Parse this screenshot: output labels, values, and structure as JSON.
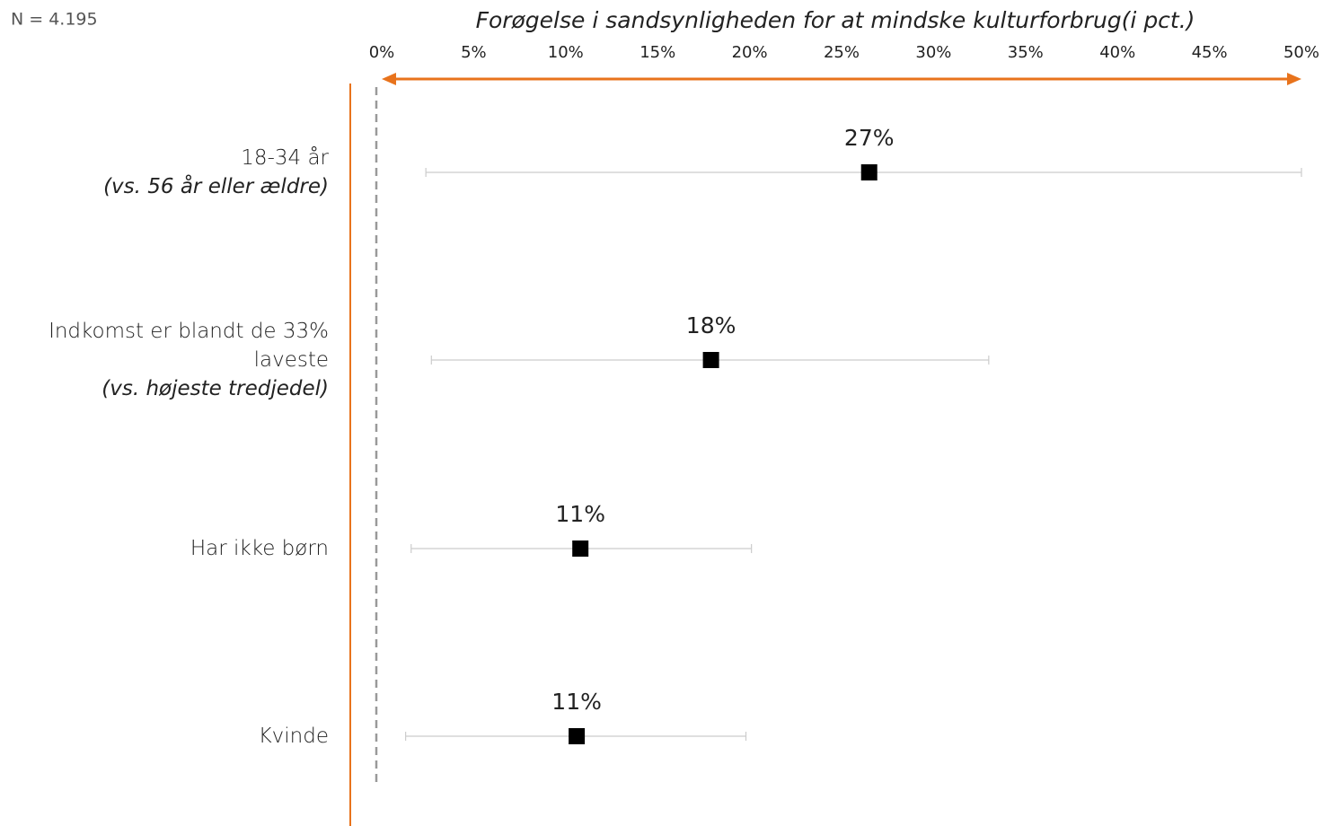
{
  "chart_data": {
    "type": "forest",
    "note": "N = 4.195",
    "title": "Forøgelse i sandsynligheden for at mindske kulturforbrug(i pct.)",
    "categories": [
      "18-34 år",
      "Indkomst er blandt de 33% laveste",
      "Har ikke børn",
      "Kvinde"
    ],
    "comparisons": [
      "(vs. 56 år eller ældre)",
      "(vs. højeste tredjedel)",
      null,
      null
    ],
    "values": [
      26.5,
      17.9,
      10.8,
      10.6
    ],
    "value_labels": [
      "27%",
      "18%",
      "11%",
      "11%"
    ],
    "ci_low": [
      2.4,
      2.7,
      1.6,
      1.3
    ],
    "ci_high": [
      50,
      33.0,
      20.1,
      19.8
    ],
    "color": "#000000",
    "axis_color": "#e8731c",
    "xlim": [
      0,
      50
    ],
    "xticks": [
      {
        "value": 0,
        "label": "0%"
      },
      {
        "value": 5,
        "label": "5%"
      },
      {
        "value": 10,
        "label": "10%"
      },
      {
        "value": 15,
        "label": "15%"
      },
      {
        "value": 20,
        "label": "20%"
      },
      {
        "value": 25,
        "label": "25%"
      },
      {
        "value": 30,
        "label": "30%"
      },
      {
        "value": 35,
        "label": "35%"
      },
      {
        "value": 40,
        "label": "40%"
      },
      {
        "value": 45,
        "label": "45%"
      },
      {
        "value": 50,
        "label": "50%"
      }
    ]
  }
}
